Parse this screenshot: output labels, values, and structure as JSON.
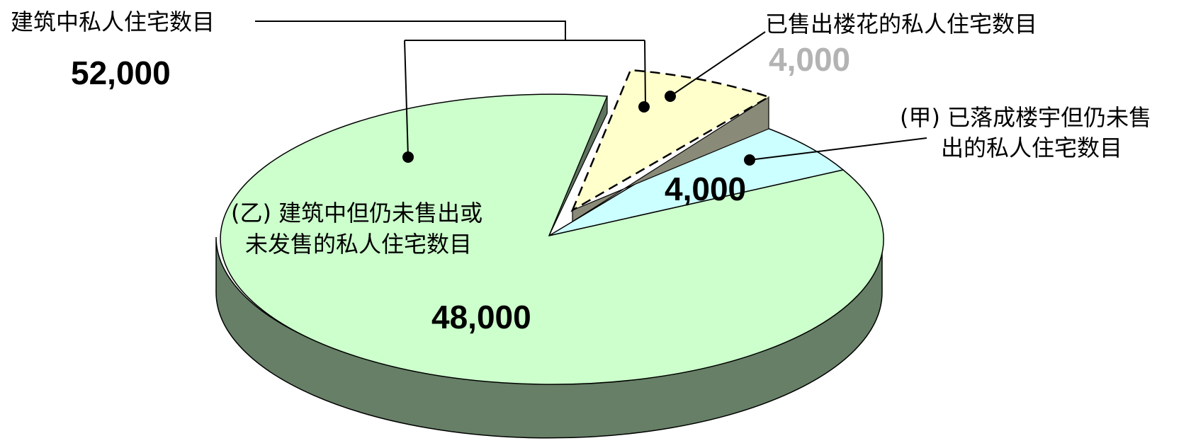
{
  "chart_data": {
    "type": "pie",
    "total": {
      "label": "建筑中私人住宅数目",
      "value": 52000,
      "value_text": "52,000"
    },
    "slices": [
      {
        "id": "a",
        "label_lines": [
          "(乙) 建筑中但仍未售出或",
          "未发售的私人住宅数目"
        ],
        "value": 48000,
        "value_text": "48,000",
        "color": "#ccffcc",
        "side_color": "#667f66"
      },
      {
        "id": "b",
        "label_lines": [
          "已售出楼花的私人住宅数目"
        ],
        "value": 4000,
        "value_text": "4,000",
        "color": "#ffffcc",
        "side_color": "#8a8a78",
        "exploded": true,
        "dashed": true,
        "value_color": "#b3b3b3"
      },
      {
        "id": "c",
        "label_lines": [
          "(甲) 已落成楼宇但仍未售",
          "出的私人住宅数目"
        ],
        "value": 4000,
        "value_text": "4,000",
        "color": "#ccffff",
        "side_color": "#7f9f9f"
      }
    ]
  }
}
